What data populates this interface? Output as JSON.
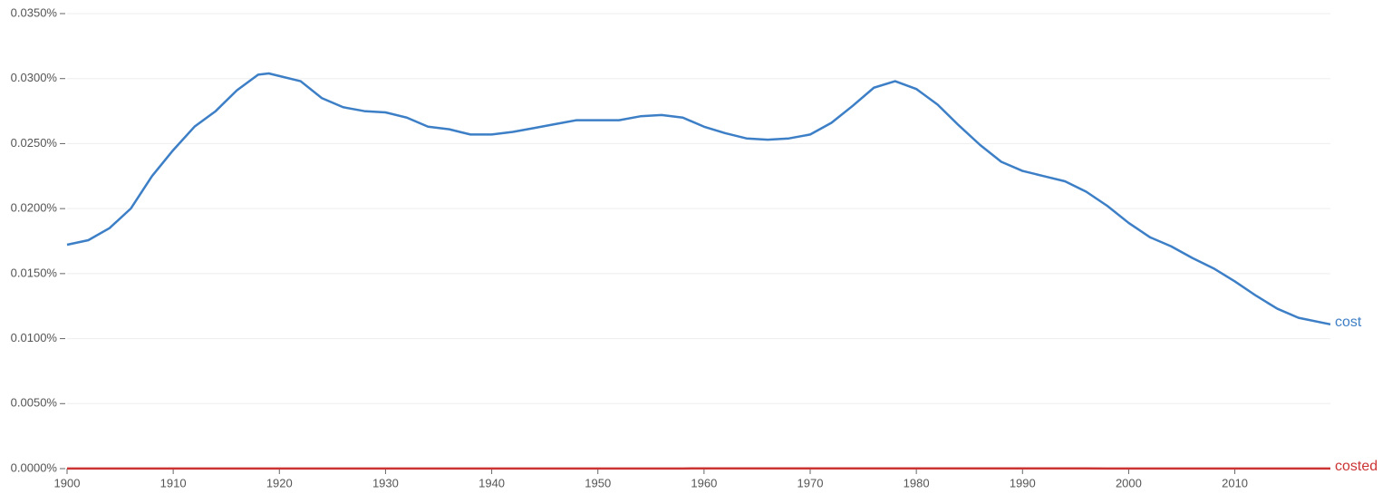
{
  "chart_data": {
    "type": "line",
    "x": [
      1900,
      1902,
      1904,
      1906,
      1908,
      1910,
      1912,
      1914,
      1916,
      1918,
      1919,
      1920,
      1922,
      1924,
      1926,
      1928,
      1930,
      1932,
      1934,
      1936,
      1938,
      1940,
      1942,
      1944,
      1946,
      1948,
      1950,
      1952,
      1954,
      1956,
      1958,
      1960,
      1962,
      1964,
      1966,
      1968,
      1970,
      1972,
      1974,
      1976,
      1978,
      1980,
      1982,
      1984,
      1986,
      1988,
      1990,
      1992,
      1994,
      1996,
      1998,
      2000,
      2002,
      2004,
      2006,
      2008,
      2010,
      2012,
      2014,
      2016,
      2019
    ],
    "series": [
      {
        "name": "cost",
        "color": "#3d7fc6",
        "values": [
          0.01722,
          0.01757,
          0.0185,
          0.02,
          0.0225,
          0.0245,
          0.0263,
          0.0275,
          0.0291,
          0.0303,
          0.0304,
          0.0302,
          0.0298,
          0.0285,
          0.0278,
          0.0275,
          0.0274,
          0.027,
          0.0263,
          0.0261,
          0.0257,
          0.0257,
          0.0259,
          0.0262,
          0.0265,
          0.0268,
          0.0268,
          0.0268,
          0.0271,
          0.0272,
          0.027,
          0.0263,
          0.0258,
          0.0254,
          0.0253,
          0.0254,
          0.0257,
          0.0266,
          0.0279,
          0.0293,
          0.0298,
          0.0292,
          0.028,
          0.0264,
          0.0249,
          0.0236,
          0.0229,
          0.0225,
          0.0221,
          0.0213,
          0.0202,
          0.0189,
          0.0178,
          0.0171,
          0.0162,
          0.0154,
          0.0144,
          0.0133,
          0.0123,
          0.0116,
          0.0111
        ]
      },
      {
        "name": "costed",
        "color": "#cc3333",
        "values": [
          1e-05,
          1e-05,
          1e-05,
          1e-05,
          1e-05,
          1e-05,
          1e-05,
          1e-05,
          1e-05,
          1e-05,
          1e-05,
          1e-05,
          1e-05,
          1e-05,
          1e-05,
          1e-05,
          1e-05,
          1e-05,
          1e-05,
          1e-05,
          1e-05,
          1e-05,
          1e-05,
          1e-05,
          1e-05,
          1e-05,
          1e-05,
          1e-05,
          1e-05,
          1e-05,
          1e-05,
          2e-05,
          2e-05,
          2e-05,
          2e-05,
          2e-05,
          2e-05,
          2e-05,
          2e-05,
          2e-05,
          2e-05,
          2e-05,
          2e-05,
          2e-05,
          2e-05,
          2e-05,
          2e-05,
          2e-05,
          2e-05,
          2e-05,
          1e-05,
          1e-05,
          1e-05,
          1e-05,
          1e-05,
          1e-05,
          1e-05,
          1e-05,
          1e-05,
          1e-05,
          1e-05
        ]
      }
    ],
    "xlim": [
      1900,
      2019
    ],
    "xticks": [
      1900,
      1910,
      1920,
      1930,
      1940,
      1950,
      1960,
      1970,
      1980,
      1990,
      2000,
      2010
    ],
    "ylim": [
      0,
      0.035
    ],
    "yticks": [
      {
        "value": 0,
        "label": "0.0000%"
      },
      {
        "value": 0.005,
        "label": "0.0050%"
      },
      {
        "value": 0.01,
        "label": "0.0100%"
      },
      {
        "value": 0.015,
        "label": "0.0150%"
      },
      {
        "value": 0.02,
        "label": "0.0200%"
      },
      {
        "value": 0.025,
        "label": "0.0250%"
      },
      {
        "value": 0.03,
        "label": "0.0300%"
      },
      {
        "value": 0.035,
        "label": "0.0350%"
      }
    ],
    "grid": true
  }
}
